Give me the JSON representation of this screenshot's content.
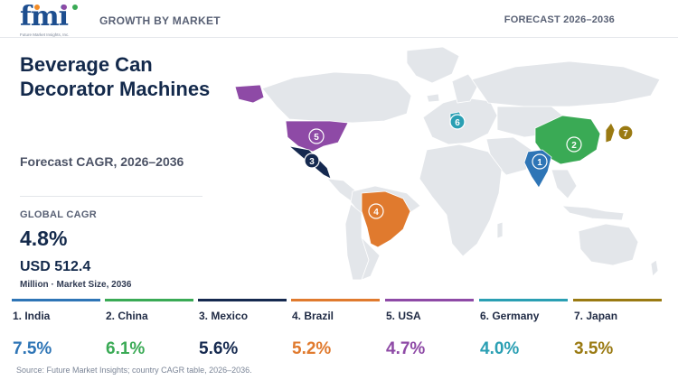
{
  "header": {
    "logo_text": "fmi",
    "logo_tagline": "Future Market Insights, Inc.",
    "left_label": "GROWTH BY MARKET",
    "right_label": "FORECAST 2026–2036"
  },
  "title_line1": "Beverage Can",
  "title_line2": "Decorator Machines",
  "subtitle": "Forecast CAGR, 2026–2036",
  "global_cagr": {
    "label": "GLOBAL CAGR",
    "value": "4.8%"
  },
  "market_size": {
    "value": "USD 512.4",
    "label": "Million · Market Size, 2036"
  },
  "colors": {
    "india": "#2e75b6",
    "china": "#3aaa55",
    "mexico": "#15294f",
    "brazil": "#e07a2e",
    "usa": "#8e4aa6",
    "germany": "#2a9fb3",
    "japan": "#9a7a12",
    "land": "#e3e6ea"
  },
  "countries": [
    {
      "name": "1. India",
      "cagr": "7.5%",
      "color": "#2e75b6",
      "marker": "1"
    },
    {
      "name": "2. China",
      "cagr": "6.1%",
      "color": "#3aaa55",
      "marker": "2"
    },
    {
      "name": "3. Mexico",
      "cagr": "5.6%",
      "color": "#15294f",
      "marker": "3"
    },
    {
      "name": "4. Brazil",
      "cagr": "5.2%",
      "color": "#e07a2e",
      "marker": "4"
    },
    {
      "name": "5. USA",
      "cagr": "4.7%",
      "color": "#8e4aa6",
      "marker": "5"
    },
    {
      "name": "6. Germany",
      "cagr": "4.0%",
      "color": "#2a9fb3",
      "marker": "6"
    },
    {
      "name": "7. Japan",
      "cagr": "3.5%",
      "color": "#9a7a12",
      "marker": "7"
    }
  ],
  "source": "Source: Future Market Insights; country CAGR table, 2026–2036."
}
